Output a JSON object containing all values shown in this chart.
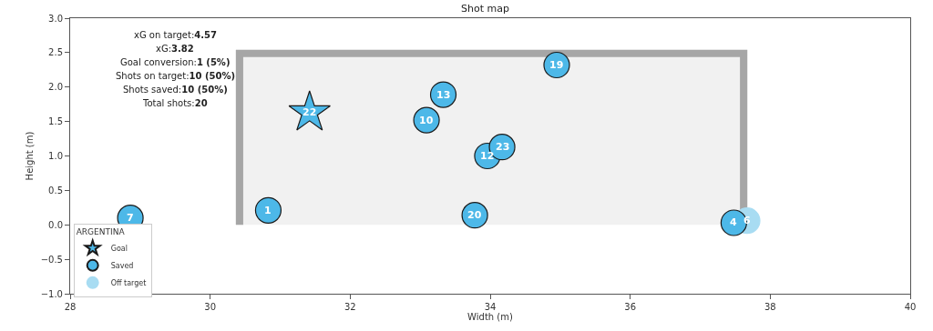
{
  "chart_data": {
    "type": "scatter",
    "title": "Shot map",
    "xlabel": "Width (m)",
    "ylabel": "Height (m)",
    "legend_title": "ARGENTINA",
    "legend": "bottom left",
    "grid": false,
    "xlim": [
      28,
      40
    ],
    "xticks": [
      28,
      30,
      32,
      34,
      36,
      38,
      40
    ],
    "ylim": [
      -1,
      3
    ],
    "yticks": [
      {
        "value": -1,
        "label": "−1.0"
      },
      {
        "value": -0.5,
        "label": "−0.5"
      },
      {
        "value": 0,
        "label": "0.0"
      },
      {
        "value": 0.5,
        "label": "0.5"
      },
      {
        "value": 1,
        "label": "1.0"
      },
      {
        "value": 1.5,
        "label": "1.5"
      },
      {
        "value": 2,
        "label": "2.0"
      },
      {
        "value": 2.5,
        "label": "2.5"
      },
      {
        "value": 3,
        "label": "3.0"
      }
    ],
    "annotations": [
      "xG on target:4.57",
      "xG:3.82",
      "Goal conversion:1 (5%)",
      "Shots on target:10 (50%)",
      "Shots saved:10 (50%)",
      "Total shots:20",
      {
        "text": "22",
        "x": 31.42,
        "y": 1.63
      },
      {
        "text": "7",
        "x": 28.86,
        "y": 0.1
      },
      {
        "text": "1",
        "x": 30.83,
        "y": 0.21
      },
      {
        "text": "10",
        "x": 33.09,
        "y": 1.52
      },
      {
        "text": "13",
        "x": 33.33,
        "y": 1.89
      },
      {
        "text": "20",
        "x": 33.78,
        "y": 0.14
      },
      {
        "text": "12",
        "x": 33.96,
        "y": 1.0
      },
      {
        "text": "23",
        "x": 34.17,
        "y": 1.13
      },
      {
        "text": "19",
        "x": 34.95,
        "y": 2.32
      },
      {
        "text": "4",
        "x": 37.48,
        "y": 0.03
      },
      {
        "text": "6",
        "x": 37.67,
        "y": 0.06
      }
    ],
    "series": [
      {
        "name": "Goal",
        "color": "#4db8e8",
        "marker": "star",
        "x": [
          31.42
        ],
        "values": [
          1.63
        ]
      },
      {
        "name": "Saved",
        "color": "#4db8e8",
        "marker": "circle",
        "x": [
          28.86,
          30.83,
          33.09,
          33.33,
          33.78,
          33.96,
          34.17,
          34.95,
          37.48
        ],
        "values": [
          0.1,
          0.21,
          1.52,
          1.89,
          0.14,
          1.0,
          1.13,
          2.32,
          0.03
        ]
      },
      {
        "name": "Off target",
        "color": "#a8dcf2",
        "marker": "circle",
        "x": [
          37.67
        ],
        "values": [
          0.06
        ]
      }
    ]
  }
}
